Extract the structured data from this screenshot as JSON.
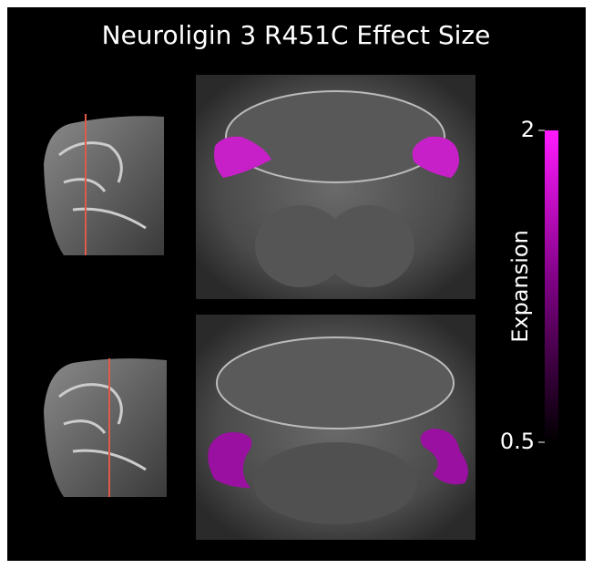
{
  "title": "Neuroligin 3 R451C Effect Size",
  "colorbar": {
    "label": "Expansion",
    "lim": [
      0.5,
      2
    ],
    "ticks": [
      2,
      0.5
    ]
  }
}
